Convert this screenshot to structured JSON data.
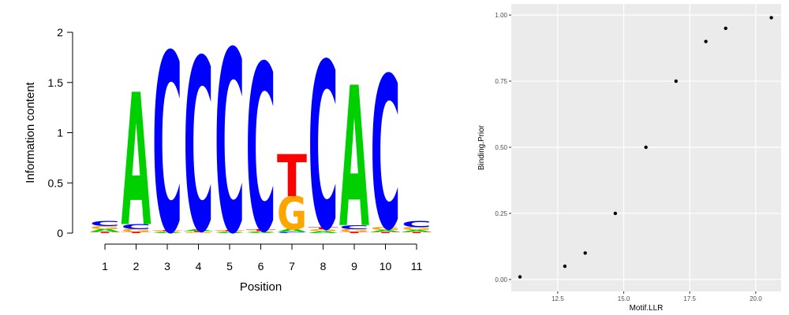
{
  "chart_data": [
    {
      "type": "logo",
      "xlabel": "Position",
      "ylabel": "Information content",
      "categories": [
        "1",
        "2",
        "3",
        "4",
        "5",
        "6",
        "7",
        "8",
        "9",
        "10",
        "11"
      ],
      "series": [
        {
          "name": "A",
          "color": "#00d000",
          "values": [
            0.03,
            1.32,
            0.01,
            0.02,
            0.01,
            0.01,
            0.03,
            0.02,
            1.4,
            0.02,
            0.02
          ]
        },
        {
          "name": "C",
          "color": "#0000ff",
          "values": [
            0.05,
            0.05,
            1.78,
            1.72,
            1.81,
            1.66,
            0.01,
            1.66,
            0.04,
            1.52,
            0.06
          ]
        },
        {
          "name": "G",
          "color": "#ffa500",
          "values": [
            0.03,
            0.03,
            0.01,
            0.01,
            0.01,
            0.01,
            0.33,
            0.02,
            0.03,
            0.03,
            0.03
          ]
        },
        {
          "name": "T",
          "color": "#ff0000",
          "values": [
            0.01,
            0.01,
            0.01,
            0.01,
            0.01,
            0.02,
            0.42,
            0.02,
            0.01,
            0.01,
            0.01
          ]
        }
      ],
      "ylim": [
        0,
        2
      ],
      "yticks": [
        0,
        0.5,
        1,
        1.5,
        2
      ]
    },
    {
      "type": "scatter",
      "xlabel": "Motif.LLR",
      "ylabel": "Binding.Prior",
      "color": "#000000",
      "x": [
        11.07,
        12.77,
        13.54,
        14.68,
        15.84,
        16.98,
        18.11,
        18.86,
        20.59
      ],
      "values": [
        0.01,
        0.05,
        0.1,
        0.25,
        0.5,
        0.75,
        0.9,
        0.95,
        0.99
      ],
      "xlim": [
        10.74,
        20.96
      ],
      "ylim": [
        -0.045,
        1.042
      ],
      "xticks": [
        12.5,
        {
          "value": 15,
          "label": "15.0"
        },
        17.5,
        {
          "value": 20,
          "label": "20.0"
        }
      ],
      "yticks": [
        {
          "value": 0,
          "label": "0.00"
        },
        0.25,
        {
          "value": 0.5,
          "label": "0.50"
        },
        0.75,
        {
          "value": 1,
          "label": "1.00"
        }
      ],
      "grid": true
    }
  ]
}
